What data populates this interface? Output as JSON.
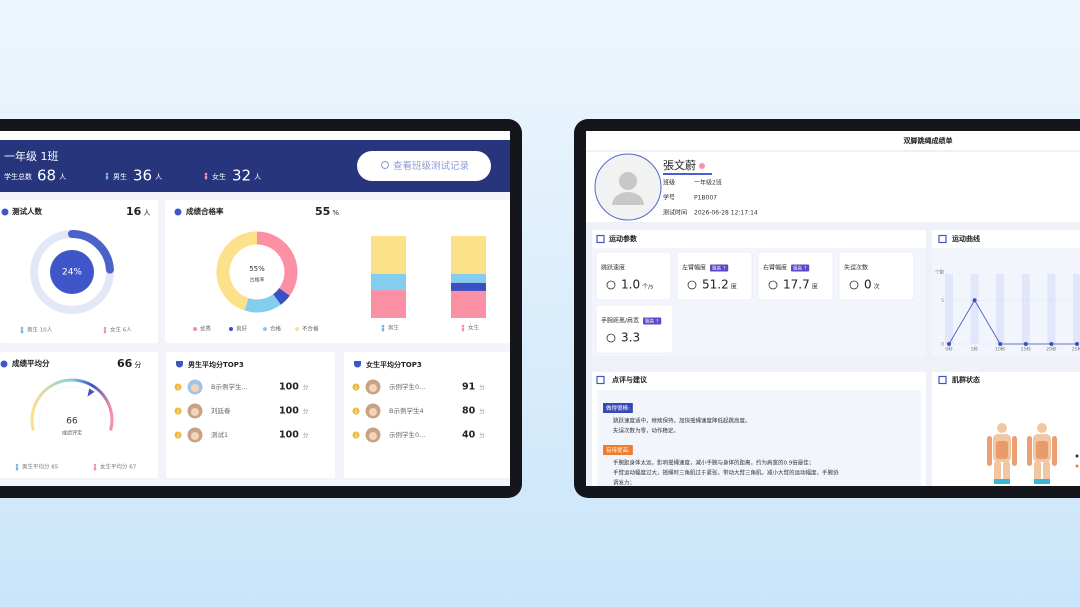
{
  "left_screen": {
    "header": {
      "class_name": "一年级 1班",
      "total_label": "学生总数",
      "total": 68,
      "total_unit": "人",
      "boys_label": "男生",
      "boys": 36,
      "boys_unit": "人",
      "girls_label": "女生",
      "girls": 32,
      "girls_unit": "人",
      "button": "查看班级测试记录"
    },
    "test_count": {
      "title": "测试人数",
      "value": 16,
      "unit": "人",
      "ring": {
        "value": 24,
        "value_label": "24%"
      },
      "boys": "男生 10人",
      "girls": "女生 6人"
    },
    "pass_rate": {
      "title": "成绩合格率",
      "value": 55,
      "unit": "%",
      "ring_label": "55%",
      "ring_caption": "合格率",
      "levels": [
        {
          "name": "优秀",
          "color": "#fb8fa3",
          "value": 35
        },
        {
          "name": "良好",
          "color": "#3b4fc0",
          "value": 5
        },
        {
          "name": "合格",
          "color": "#84cdee",
          "value": 15
        },
        {
          "name": "不合格",
          "color": "#fde08a",
          "value": 45
        }
      ],
      "bars": [
        {
          "name": "男生",
          "values": [
            34,
            0,
            20,
            46
          ]
        },
        {
          "name": "女生",
          "values": [
            33,
            10,
            11,
            46
          ]
        }
      ]
    },
    "average": {
      "title": "成绩平均分",
      "value": 66,
      "unit": "分",
      "range": [
        0,
        100
      ],
      "gauge_caption": "成绩评定",
      "boys": "男生平均分 65",
      "girls": "女生平均分 67"
    },
    "top_lists": [
      {
        "title": "男生平均分TOP3",
        "rows": [
          {
            "rank": 1,
            "name": "B示例学生...",
            "score": 100,
            "unit": "分"
          },
          {
            "rank": 2,
            "name": "刘廷春",
            "score": 100,
            "unit": "分"
          },
          {
            "rank": 3,
            "name": "测试1",
            "score": 100,
            "unit": "分"
          }
        ]
      },
      {
        "title": "女生平均分TOP3",
        "rows": [
          {
            "rank": 1,
            "name": "示例学生0...",
            "score": 91,
            "unit": "分"
          },
          {
            "rank": 2,
            "name": "B示例学生4",
            "score": 80,
            "unit": "分"
          },
          {
            "rank": 3,
            "name": "示例学生0...",
            "score": 40,
            "unit": "分"
          }
        ]
      }
    ]
  },
  "right_screen": {
    "title": "双脚跳绳成绩单",
    "profile": {
      "name": "張文蔚",
      "fields": [
        {
          "label": "班级",
          "value": "一年级2班"
        },
        {
          "label": "学号",
          "value": "P1B007"
        },
        {
          "label": "测试时间",
          "value": "2026-06-28 12:17:14"
        }
      ]
    },
    "params": {
      "title": "运动参数",
      "items": [
        {
          "label": "跳跃速度",
          "value": "1.0",
          "unit": "个/s"
        },
        {
          "label": "左臂幅度",
          "badge": "极高 ↑",
          "value": "51.2",
          "unit": "度"
        },
        {
          "label": "右臂幅度",
          "badge": "极高 ↑",
          "value": "17.7",
          "unit": "度"
        },
        {
          "label": "失误次数",
          "value": "0",
          "unit": "次"
        },
        {
          "label": "手腕距离/肩宽",
          "badge": "极高 ↑",
          "value": "3.3"
        }
      ]
    },
    "curve": {
      "type": "line",
      "title": "运动曲线",
      "y_label": "个数",
      "x": [
        "0秒",
        "5秒",
        "10秒",
        "15秒",
        "20秒",
        "25秒"
      ],
      "values": [
        0,
        5,
        0,
        0,
        0,
        0
      ],
      "ylim": [
        0,
        8
      ],
      "yticks": [
        0,
        5
      ],
      "color": "#3b4fc0"
    },
    "comments": {
      "title": "点评与建议",
      "sections": [
        {
          "tag": "做得很棒:",
          "lines": [
            "跳跃速度适中，继续保持，加快摇绳速度降低起跳高度。",
            "失误次数为零，动作稳定。"
          ]
        },
        {
          "tag": "有待提高:",
          "lines": [
            "手腕距身体太远，影响摇绳速度，减小手腕与身体的距离，约为肩宽的0.9倍最佳；",
            "手臂运动幅度过大，摇绳时三角肌过于紧张，带动大臂三角肌。减小大臂的运动幅度，手腕协",
            "调发力；"
          ]
        }
      ]
    },
    "muscles": {
      "title": "肌群状态"
    }
  }
}
